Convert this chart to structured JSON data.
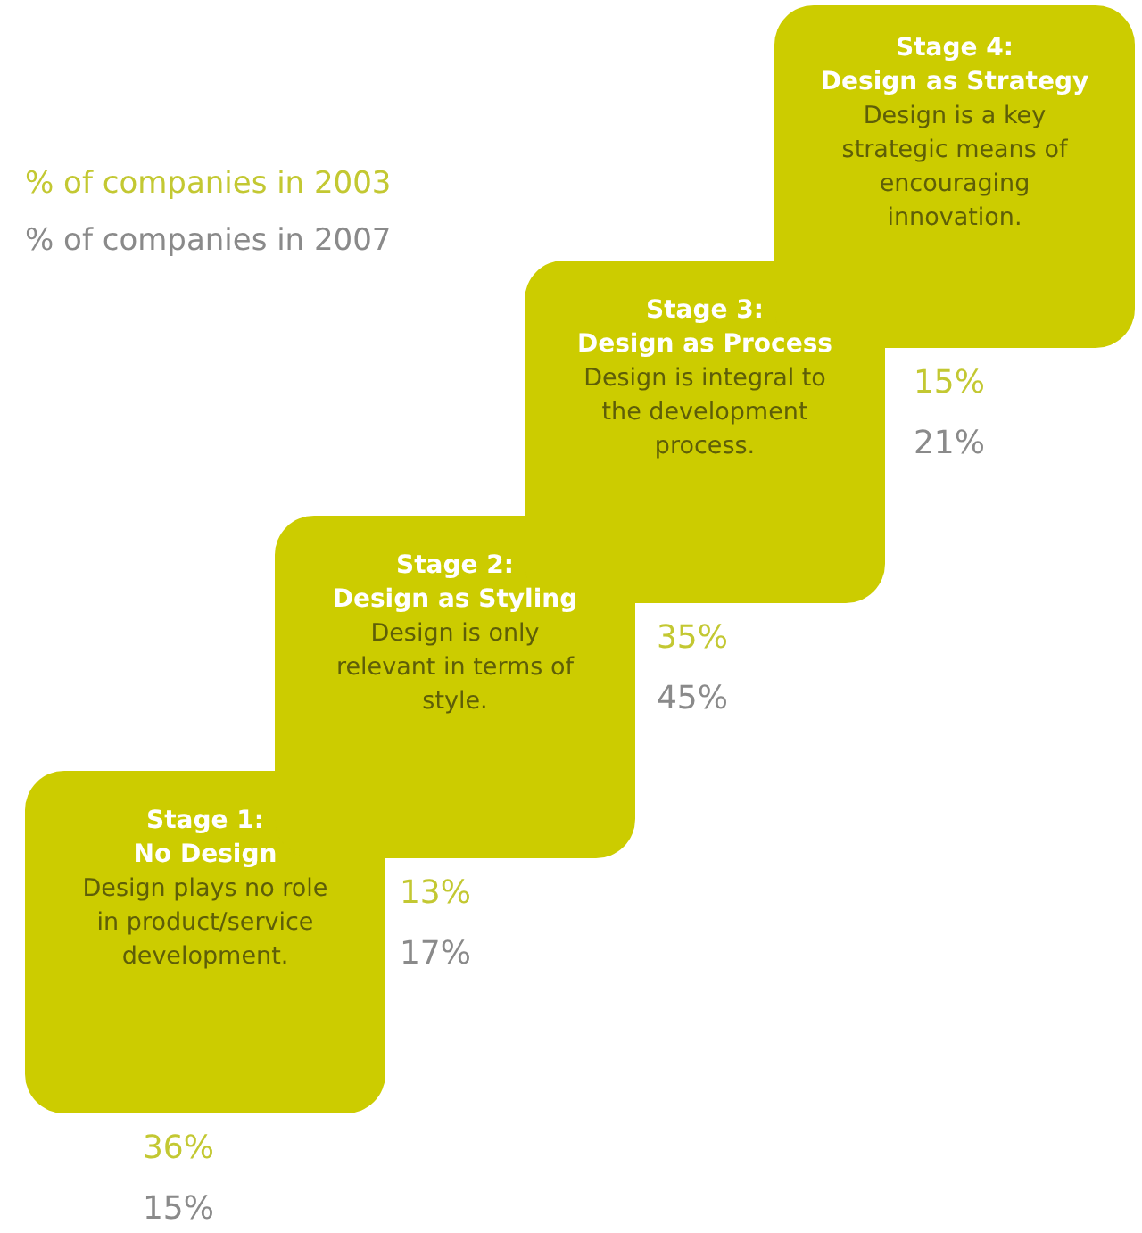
{
  "chart_data": {
    "type": "other",
    "categories": [
      "Stage 1: No Design",
      "Stage 2: Design as Styling",
      "Stage 3: Design as Process",
      "Stage 4: Design as Strategy"
    ],
    "annotations": [
      "Design plays no role in product/service development.",
      "Design is only relevant in terms of style.",
      "Design is integral to the development process.",
      "Design is a key strategic means of encouraging innovation."
    ],
    "series": [
      {
        "name": "% of companies in 2003",
        "color": "#c3c832",
        "values": [
          36,
          13,
          35,
          15
        ],
        "value_labels": [
          "36%",
          "13%",
          "35%",
          "15%"
        ]
      },
      {
        "name": "% of companies in 2007",
        "color": "#8a8a8a",
        "values": [
          15,
          17,
          45,
          21
        ],
        "value_labels": [
          "15%",
          "17%",
          "45%",
          "21%"
        ]
      }
    ],
    "color": "#cccc00"
  }
}
